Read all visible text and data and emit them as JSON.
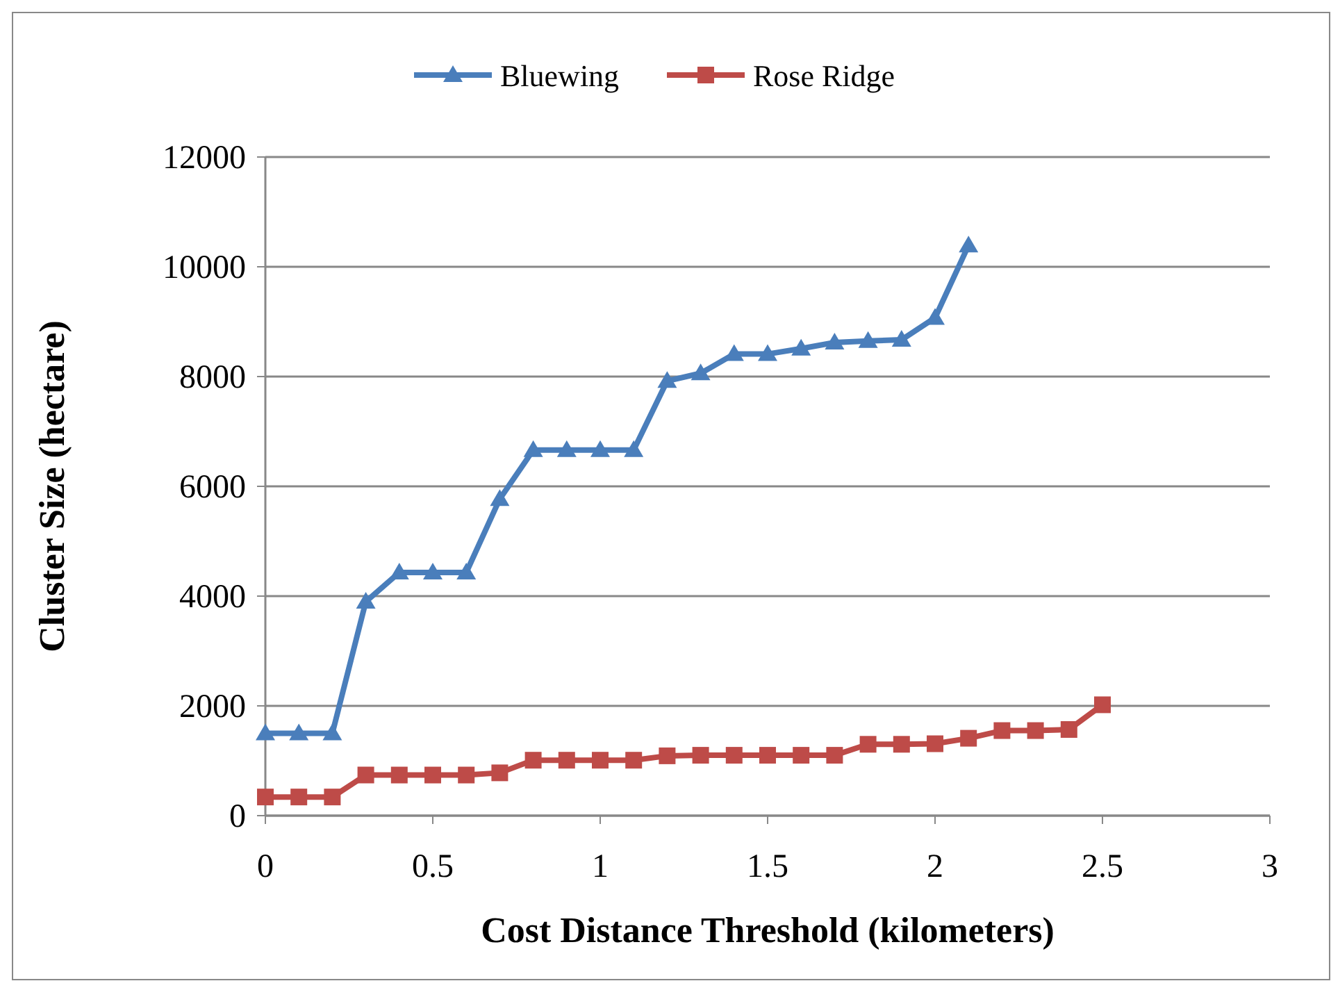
{
  "chart_data": {
    "type": "line",
    "xlabel": "Cost Distance Threshold (kilometers)",
    "ylabel": "Cluster Size (hectare)",
    "xlim": [
      0,
      3
    ],
    "xticks": [
      0,
      0.5,
      1,
      1.5,
      2,
      2.5,
      3
    ],
    "ylim": [
      0,
      12000
    ],
    "yticks": [
      0,
      2000,
      4000,
      6000,
      8000,
      10000,
      12000
    ],
    "grid": "y",
    "legend": "top",
    "line_style": "solid",
    "series": [
      {
        "name": "Bluewing",
        "color": "#4a7ebb",
        "marker": "triangle",
        "x": [
          0,
          0.1,
          0.2,
          0.3,
          0.4,
          0.5,
          0.6,
          0.7,
          0.8,
          0.9,
          1,
          1.1,
          1.2,
          1.3,
          1.4,
          1.5,
          1.6,
          1.7,
          1.8,
          1.9,
          2,
          2.1
        ],
        "values": [
          1500,
          1500,
          1500,
          3900,
          4430,
          4430,
          4430,
          5770,
          6660,
          6660,
          6660,
          6660,
          7920,
          8060,
          8410,
          8410,
          8510,
          8620,
          8650,
          8670,
          9070,
          10390
        ]
      },
      {
        "name": "Rose Ridge",
        "color": "#be4b48",
        "marker": "square",
        "x": [
          0,
          0.1,
          0.2,
          0.3,
          0.4,
          0.5,
          0.6,
          0.7,
          0.8,
          0.9,
          1,
          1.1,
          1.2,
          1.3,
          1.4,
          1.5,
          1.6,
          1.7,
          1.8,
          1.9,
          2,
          2.1,
          2.2,
          2.3,
          2.4,
          2.5
        ],
        "values": [
          340,
          340,
          340,
          740,
          740,
          740,
          740,
          780,
          1010,
          1010,
          1010,
          1010,
          1090,
          1100,
          1100,
          1100,
          1100,
          1100,
          1300,
          1300,
          1310,
          1410,
          1550,
          1550,
          1570,
          2020
        ]
      }
    ]
  }
}
